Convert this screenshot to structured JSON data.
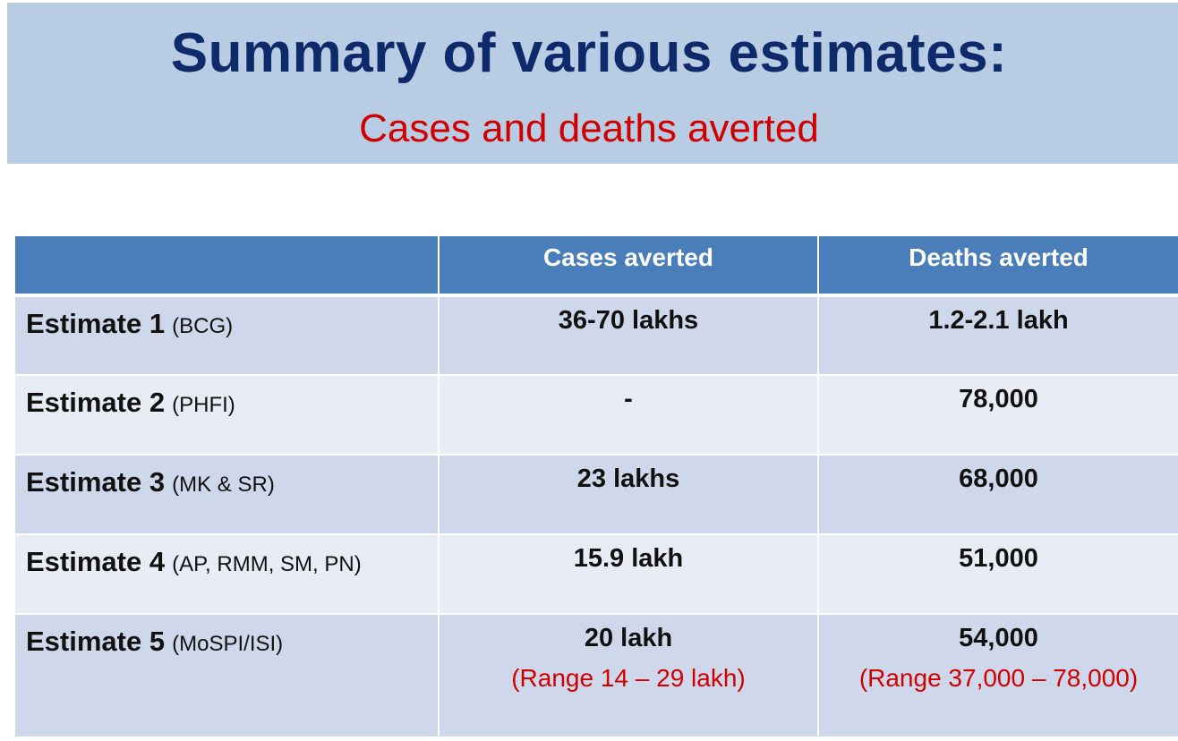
{
  "slide": {
    "title": "Summary of various estimates:",
    "subtitle": "Cases and deaths averted"
  },
  "table": {
    "headers": [
      "",
      "Cases averted",
      "Deaths averted"
    ],
    "rows": [
      {
        "name": "Estimate 1",
        "source": "(BCG)",
        "cases": "36-70 lakhs",
        "deaths": "1.2-2.1 lakh"
      },
      {
        "name": "Estimate 2",
        "source": "(PHFI)",
        "cases": "-",
        "deaths": "78,000"
      },
      {
        "name": "Estimate 3",
        "source": "(MK & SR)",
        "cases": "23 lakhs",
        "deaths": "68,000"
      },
      {
        "name": "Estimate 4",
        "source": "(AP, RMM, SM, PN)",
        "cases": "15.9 lakh",
        "deaths": "51,000"
      },
      {
        "name": "Estimate 5",
        "source": "(MoSPI/ISI)",
        "cases": "20 lakh",
        "cases_range": "(Range 14 – 29 lakh)",
        "deaths": "54,000",
        "deaths_range": "(Range 37,000 – 78,000)"
      }
    ]
  },
  "colors": {
    "title_band": "#b8cce4",
    "title_text": "#0f2a6b",
    "subtitle_text": "#d00000",
    "header_bg": "#4a7ebb",
    "row_odd": "#cfd8ea",
    "row_even": "#e8ecf5",
    "range_text": "#d00000"
  }
}
